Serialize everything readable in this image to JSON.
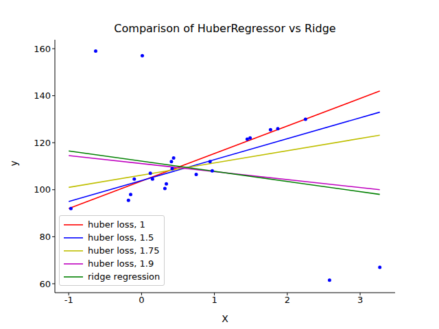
{
  "chart_data": {
    "type": "scatter",
    "title": "Comparison of HuberRegressor vs Ridge",
    "x_label": "X",
    "y_label": "y",
    "xlim": [
      -1.19,
      3.48
    ],
    "ylim": [
      56.2,
      163.8
    ],
    "xticks": [
      -1,
      0,
      1,
      2,
      3
    ],
    "yticks": [
      60,
      80,
      100,
      120,
      140,
      160
    ],
    "legend": "lower left",
    "grid": false,
    "series": [
      {
        "type": "scatter",
        "marker": "o",
        "color": "#0000ff",
        "x": [
          -0.97,
          -0.63,
          0.01,
          -0.18,
          -0.15,
          -0.1,
          0.12,
          0.15,
          0.32,
          0.34,
          0.41,
          0.44,
          0.42,
          0.75,
          0.94,
          0.97,
          1.45,
          1.49,
          1.77,
          1.87,
          2.25,
          2.58,
          3.27
        ],
        "values": [
          92,
          159,
          157,
          95.5,
          98,
          104.5,
          107,
          104.5,
          100.5,
          102.5,
          112,
          113.5,
          109,
          106.5,
          112,
          108,
          121.5,
          122,
          125.5,
          126,
          130,
          61.5,
          67
        ]
      },
      {
        "type": "line",
        "name": "huber loss, 1",
        "color": "#ff0000",
        "x": [
          -1,
          3.27
        ],
        "values": [
          92,
          142
        ]
      },
      {
        "type": "line",
        "name": "huber loss, 1.5",
        "color": "#0000ff",
        "x": [
          -1,
          3.27
        ],
        "values": [
          95,
          133
        ]
      },
      {
        "type": "line",
        "name": "huber loss, 1.75",
        "color": "#bfbf00",
        "x": [
          -1,
          3.27
        ],
        "values": [
          101,
          123.2
        ]
      },
      {
        "type": "line",
        "name": "huber loss, 1.9",
        "color": "#bf00bf",
        "x": [
          -1,
          3.27
        ],
        "values": [
          114.5,
          100
        ]
      },
      {
        "type": "line",
        "name": "ridge regression",
        "color": "#008000",
        "x": [
          -1,
          3.27
        ],
        "values": [
          116.5,
          98
        ]
      }
    ]
  }
}
